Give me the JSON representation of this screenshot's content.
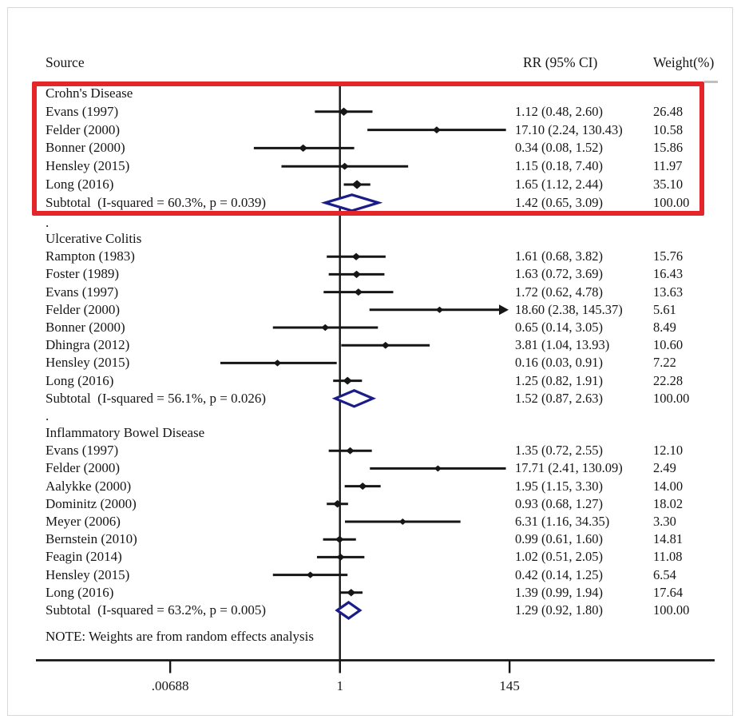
{
  "colors": {
    "highlight_red": "#e4262b",
    "diamond_navy": "#1a1c88",
    "ink_black": "#161616",
    "frame_gray": "#d8d8d8"
  },
  "chart_data": {
    "type": "forest",
    "columns": {
      "source": "Source",
      "rr": "RR (95% CI)",
      "weight": "Weight(%)"
    },
    "note": "NOTE: Weights are from random effects analysis",
    "x_axis": {
      "scale": "log10",
      "ref_line": 1,
      "ticks": [
        {
          "value": 0.00688,
          "label": ".00688"
        },
        {
          "value": 1,
          "label": "1"
        },
        {
          "value": 145,
          "label": "145"
        }
      ]
    },
    "sections": [
      {
        "label": "Crohn's Disease",
        "highlighted": true,
        "separator_above": "",
        "studies": [
          {
            "source": "Evans (1997)",
            "rr": 1.12,
            "ci_low": 0.48,
            "ci_high": 2.6,
            "rr_text": "1.12 (0.48, 2.60)",
            "weight": "26.48",
            "clipped": false
          },
          {
            "source": "Felder (2000)",
            "rr": 17.1,
            "ci_low": 2.24,
            "ci_high": 130.43,
            "rr_text": "17.10 (2.24, 130.43)",
            "weight": "10.58",
            "clipped": false
          },
          {
            "source": "Bonner (2000)",
            "rr": 0.34,
            "ci_low": 0.08,
            "ci_high": 1.52,
            "rr_text": "0.34 (0.08, 1.52)",
            "weight": "15.86",
            "clipped": false
          },
          {
            "source": "Hensley (2015)",
            "rr": 1.15,
            "ci_low": 0.18,
            "ci_high": 7.4,
            "rr_text": "1.15 (0.18, 7.40)",
            "weight": "11.97",
            "clipped": false
          },
          {
            "source": "Long (2016)",
            "rr": 1.65,
            "ci_low": 1.12,
            "ci_high": 2.44,
            "rr_text": "1.65 (1.12, 2.44)",
            "weight": "35.10",
            "clipped": false
          }
        ],
        "subtotal": {
          "label": "Subtotal  (I-squared = 60.3%, p = 0.039)",
          "rr": 1.42,
          "ci_low": 0.65,
          "ci_high": 3.09,
          "rr_text": "1.42 (0.65, 3.09)",
          "weight": "100.00"
        }
      },
      {
        "label": "Ulcerative Colitis",
        "highlighted": false,
        "separator_above": ".",
        "studies": [
          {
            "source": "Rampton (1983)",
            "rr": 1.61,
            "ci_low": 0.68,
            "ci_high": 3.82,
            "rr_text": "1.61 (0.68, 3.82)",
            "weight": "15.76",
            "clipped": false
          },
          {
            "source": "Foster (1989)",
            "rr": 1.63,
            "ci_low": 0.72,
            "ci_high": 3.69,
            "rr_text": "1.63 (0.72, 3.69)",
            "weight": "16.43",
            "clipped": false
          },
          {
            "source": "Evans (1997)",
            "rr": 1.72,
            "ci_low": 0.62,
            "ci_high": 4.78,
            "rr_text": "1.72 (0.62, 4.78)",
            "weight": "13.63",
            "clipped": false
          },
          {
            "source": "Felder (2000)",
            "rr": 18.6,
            "ci_low": 2.38,
            "ci_high": 145.37,
            "rr_text": "18.60 (2.38, 145.37)",
            "weight": "5.61",
            "clipped": true
          },
          {
            "source": "Bonner (2000)",
            "rr": 0.65,
            "ci_low": 0.14,
            "ci_high": 3.05,
            "rr_text": "0.65 (0.14, 3.05)",
            "weight": "8.49",
            "clipped": false
          },
          {
            "source": "Dhingra (2012)",
            "rr": 3.81,
            "ci_low": 1.04,
            "ci_high": 13.93,
            "rr_text": "3.81 (1.04, 13.93)",
            "weight": "10.60",
            "clipped": false
          },
          {
            "source": "Hensley (2015)",
            "rr": 0.16,
            "ci_low": 0.03,
            "ci_high": 0.91,
            "rr_text": "0.16 (0.03, 0.91)",
            "weight": "7.22",
            "clipped": false
          },
          {
            "source": "Long (2016)",
            "rr": 1.25,
            "ci_low": 0.82,
            "ci_high": 1.91,
            "rr_text": "1.25 (0.82, 1.91)",
            "weight": "22.28",
            "clipped": false
          }
        ],
        "subtotal": {
          "label": "Subtotal  (I-squared = 56.1%, p = 0.026)",
          "rr": 1.52,
          "ci_low": 0.87,
          "ci_high": 2.63,
          "rr_text": "1.52 (0.87, 2.63)",
          "weight": "100.00"
        }
      },
      {
        "label": "Inflammatory Bowel Disease",
        "highlighted": false,
        "separator_above": ".",
        "studies": [
          {
            "source": "Evans (1997)",
            "rr": 1.35,
            "ci_low": 0.72,
            "ci_high": 2.55,
            "rr_text": "1.35 (0.72, 2.55)",
            "weight": "12.10",
            "clipped": false
          },
          {
            "source": "Felder (2000)",
            "rr": 17.71,
            "ci_low": 2.41,
            "ci_high": 130.09,
            "rr_text": "17.71 (2.41, 130.09)",
            "weight": "2.49",
            "clipped": false
          },
          {
            "source": "Aalykke (2000)",
            "rr": 1.95,
            "ci_low": 1.15,
            "ci_high": 3.3,
            "rr_text": "1.95 (1.15, 3.30)",
            "weight": "14.00",
            "clipped": false
          },
          {
            "source": "Dominitz (2000)",
            "rr": 0.93,
            "ci_low": 0.68,
            "ci_high": 1.27,
            "rr_text": "0.93 (0.68, 1.27)",
            "weight": "18.02",
            "clipped": false
          },
          {
            "source": "Meyer (2006)",
            "rr": 6.31,
            "ci_low": 1.16,
            "ci_high": 34.35,
            "rr_text": "6.31 (1.16, 34.35)",
            "weight": "3.30",
            "clipped": false
          },
          {
            "source": "Bernstein (2010)",
            "rr": 0.99,
            "ci_low": 0.61,
            "ci_high": 1.6,
            "rr_text": "0.99 (0.61, 1.60)",
            "weight": "14.81",
            "clipped": false
          },
          {
            "source": "Feagin (2014)",
            "rr": 1.02,
            "ci_low": 0.51,
            "ci_high": 2.05,
            "rr_text": "1.02 (0.51, 2.05)",
            "weight": "11.08",
            "clipped": false
          },
          {
            "source": "Hensley (2015)",
            "rr": 0.42,
            "ci_low": 0.14,
            "ci_high": 1.25,
            "rr_text": "0.42 (0.14, 1.25)",
            "weight": "6.54",
            "clipped": false
          },
          {
            "source": "Long (2016)",
            "rr": 1.39,
            "ci_low": 0.99,
            "ci_high": 1.94,
            "rr_text": "1.39 (0.99, 1.94)",
            "weight": "17.64",
            "clipped": false
          }
        ],
        "subtotal": {
          "label": "Subtotal  (I-squared = 63.2%, p = 0.005)",
          "rr": 1.29,
          "ci_low": 0.92,
          "ci_high": 1.8,
          "rr_text": "1.29 (0.92, 1.80)",
          "weight": "100.00"
        }
      }
    ]
  }
}
